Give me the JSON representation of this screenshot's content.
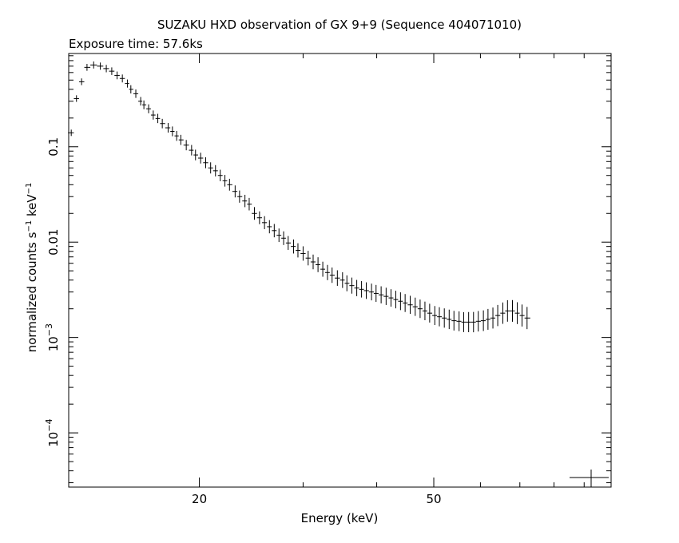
{
  "chart_data": {
    "type": "scatter",
    "title": "SUZAKU HXD observation of GX 9+9 (Sequence 404071010)",
    "subtitle": "Exposure time: 57.6ks",
    "xlabel": "Energy (keV)",
    "ylabel": {
      "prefix": "normalized counts s",
      "exp1": "−1",
      "mid": " keV",
      "exp2": "−1"
    },
    "x_scale": "log",
    "y_scale": "log",
    "xlim": [
      12.0,
      100.0
    ],
    "ylim": [
      2.7e-05,
      0.95
    ],
    "x_ticks": [
      {
        "value": 20,
        "label": "20"
      },
      {
        "value": 50,
        "label": "50"
      }
    ],
    "y_ticks": [
      {
        "value": 0.0001,
        "label": "10",
        "exp": "−4"
      },
      {
        "value": 0.001,
        "label": "10",
        "exp": "−3"
      },
      {
        "value": 0.01,
        "label": "0.01",
        "exp": ""
      },
      {
        "value": 0.1,
        "label": "0.1",
        "exp": ""
      }
    ],
    "grid": false,
    "series": [
      {
        "points": [
          [
            12.12,
            0.14
          ],
          [
            12.37,
            0.32
          ],
          [
            12.62,
            0.48
          ],
          [
            12.89,
            0.68
          ],
          [
            13.23,
            0.72
          ],
          [
            13.58,
            0.7
          ],
          [
            13.9,
            0.66
          ],
          [
            14.2,
            0.62
          ],
          [
            14.5,
            0.56
          ],
          [
            14.8,
            0.52
          ],
          [
            15.1,
            0.46
          ],
          [
            15.3,
            0.4
          ],
          [
            15.6,
            0.36
          ],
          [
            15.9,
            0.3
          ],
          [
            16.1,
            0.275
          ],
          [
            16.4,
            0.25
          ],
          [
            16.7,
            0.215
          ],
          [
            17.0,
            0.198
          ],
          [
            17.3,
            0.175
          ],
          [
            17.7,
            0.158
          ],
          [
            18.0,
            0.145
          ],
          [
            18.3,
            0.13
          ],
          [
            18.6,
            0.118
          ],
          [
            19.0,
            0.104
          ],
          [
            19.4,
            0.092
          ],
          [
            19.7,
            0.082
          ],
          [
            20.1,
            0.076
          ],
          [
            20.5,
            0.068
          ],
          [
            20.9,
            0.06
          ],
          [
            21.3,
            0.056
          ],
          [
            21.7,
            0.05
          ],
          [
            22.1,
            0.044
          ],
          [
            22.5,
            0.04
          ],
          [
            23.0,
            0.034
          ],
          [
            23.4,
            0.03
          ],
          [
            23.9,
            0.027
          ],
          [
            24.3,
            0.025
          ],
          [
            24.8,
            0.02
          ],
          [
            25.3,
            0.018
          ],
          [
            25.8,
            0.016
          ],
          [
            26.3,
            0.0145
          ],
          [
            26.8,
            0.0132
          ],
          [
            27.3,
            0.0118
          ],
          [
            27.8,
            0.011
          ],
          [
            28.3,
            0.0098
          ],
          [
            28.9,
            0.009
          ],
          [
            29.4,
            0.0082
          ],
          [
            30.0,
            0.0076
          ],
          [
            30.6,
            0.0068
          ],
          [
            31.2,
            0.0062
          ],
          [
            31.8,
            0.0058
          ],
          [
            32.4,
            0.0052
          ],
          [
            33.0,
            0.0048
          ],
          [
            33.6,
            0.0045
          ],
          [
            34.3,
            0.0042
          ],
          [
            35.0,
            0.004
          ],
          [
            35.6,
            0.0037
          ],
          [
            36.3,
            0.0035
          ],
          [
            37.0,
            0.0033
          ],
          [
            37.7,
            0.0032
          ],
          [
            38.4,
            0.0031
          ],
          [
            39.2,
            0.003
          ],
          [
            39.9,
            0.0029
          ],
          [
            40.7,
            0.0028
          ],
          [
            41.5,
            0.0027
          ],
          [
            42.3,
            0.0026
          ],
          [
            43.1,
            0.0025
          ],
          [
            43.9,
            0.0024
          ],
          [
            44.7,
            0.0023
          ],
          [
            45.6,
            0.0022
          ],
          [
            46.5,
            0.0021
          ],
          [
            47.4,
            0.002
          ],
          [
            48.3,
            0.0019
          ],
          [
            49.2,
            0.0018
          ],
          [
            50.2,
            0.0017
          ],
          [
            51.1,
            0.00165
          ],
          [
            52.1,
            0.0016
          ],
          [
            53.1,
            0.00155
          ],
          [
            54.1,
            0.0015
          ],
          [
            55.2,
            0.00148
          ],
          [
            56.2,
            0.00145
          ],
          [
            57.3,
            0.00145
          ],
          [
            58.4,
            0.00145
          ],
          [
            59.5,
            0.00148
          ],
          [
            60.7,
            0.0015
          ],
          [
            61.8,
            0.00155
          ],
          [
            63.0,
            0.0016
          ],
          [
            64.2,
            0.0017
          ],
          [
            65.5,
            0.0018
          ],
          [
            66.7,
            0.0019
          ],
          [
            68.0,
            0.0019
          ],
          [
            69.3,
            0.0018
          ],
          [
            70.6,
            0.0017
          ],
          [
            72.0,
            0.0016
          ]
        ]
      }
    ]
  }
}
